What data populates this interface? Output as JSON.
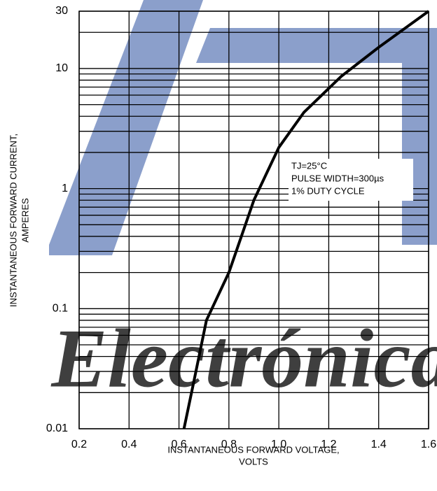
{
  "chart_data": {
    "type": "line",
    "watermark": "Electrónica",
    "x_label": [
      "INSTANTANEOUS FORWARD VOLTAGE,",
      "VOLTS"
    ],
    "y_label": [
      "INSTANTANEOUS FORWARD CURRENT,",
      "AMPERES"
    ],
    "annotation": [
      "TJ=25°C",
      "PULSE WIDTH=300µs",
      "1% DUTY CYCLE"
    ],
    "x": [
      0.62,
      0.66,
      0.71,
      0.8,
      0.9,
      1.0,
      1.1,
      1.25,
      1.4,
      1.6
    ],
    "series": [
      {
        "color": "#000000",
        "values": [
          0.01,
          0.025,
          0.08,
          0.2,
          0.8,
          2.2,
          4.3,
          8.6,
          15,
          30
        ]
      }
    ],
    "xlim": [
      0.2,
      1.6
    ],
    "xticks": [
      0.2,
      0.4,
      0.6,
      0.8,
      {
        "value": 1,
        "label": "1.0"
      },
      1.2,
      1.4,
      1.6
    ],
    "ylim": [
      0.01,
      30
    ],
    "yscale": "log",
    "yticks": [
      0.01,
      0.1,
      1,
      10,
      30
    ],
    "y_minor_ticks": [
      0.02,
      0.03,
      0.04,
      0.05,
      0.06,
      0.07,
      0.08,
      0.09,
      0.2,
      0.3,
      0.4,
      0.5,
      0.6,
      0.7,
      0.8,
      0.9,
      2,
      3,
      4,
      5,
      6,
      7,
      8,
      9,
      20
    ],
    "grid": true
  }
}
